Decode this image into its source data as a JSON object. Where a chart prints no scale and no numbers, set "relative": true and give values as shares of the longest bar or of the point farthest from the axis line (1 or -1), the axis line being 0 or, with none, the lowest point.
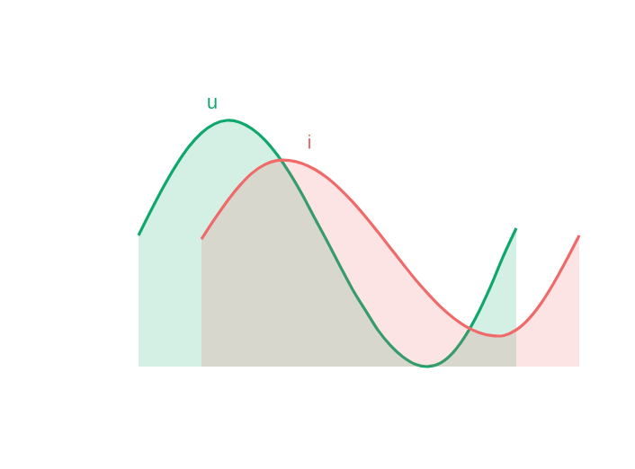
{
  "chart_data": {
    "type": "area",
    "relative": true,
    "categories": [
      null,
      null,
      null,
      null,
      null,
      null,
      null,
      null,
      null,
      null,
      null,
      null,
      null,
      null,
      null,
      null,
      null,
      null,
      null,
      null,
      null,
      null,
      null,
      null,
      null,
      null,
      null,
      null,
      null,
      null,
      null,
      null,
      null,
      null,
      null,
      null
    ],
    "series": [
      {
        "name": "u",
        "color": "#0fa86c",
        "values": [
          0.533,
          0.635,
          0.732,
          0.819,
          0.893,
          0.949,
          0.985,
          1.0,
          0.993,
          0.966,
          0.922,
          0.861,
          0.786,
          0.699,
          0.602,
          0.507,
          0.409,
          0.313,
          0.23,
          0.149,
          0.086,
          0.039,
          0.009,
          0,
          0.015,
          0.058,
          0.128,
          0.22,
          0.33,
          0.452,
          0.562,
          null,
          null,
          null,
          null,
          null
        ]
      },
      {
        "name": "i",
        "color": "#f06a6a",
        "values": [
          null,
          null,
          null,
          null,
          null,
          0.518,
          0.596,
          0.669,
          0.733,
          0.785,
          0.82,
          0.837,
          0.837,
          0.825,
          0.801,
          0.766,
          0.721,
          0.669,
          0.61,
          0.547,
          0.482,
          0.417,
          0.353,
          0.295,
          0.242,
          0.198,
          0.163,
          0.139,
          0.126,
          0.126,
          0.149,
          0.194,
          0.259,
          0.341,
          0.434,
          0.533
        ]
      }
    ]
  }
}
